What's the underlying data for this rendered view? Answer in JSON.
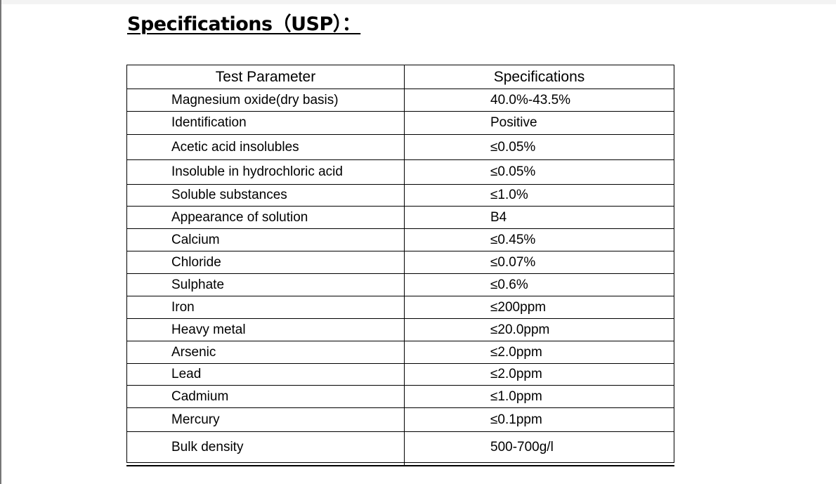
{
  "title": "Specifications（USP）：",
  "table": {
    "headers": [
      "Test Parameter",
      "Specifications"
    ],
    "rows": [
      [
        "Magnesium oxide(dry basis)",
        "40.0%-43.5%"
      ],
      [
        "Identification",
        "Positive"
      ],
      [
        "Acetic acid insolubles",
        "≤0.05%"
      ],
      [
        "Insoluble in hydrochloric acid",
        "≤0.05%"
      ],
      [
        "Soluble substances",
        "≤1.0%"
      ],
      [
        "Appearance of solution",
        "B4"
      ],
      [
        "Calcium",
        "≤0.45%"
      ],
      [
        "Chloride",
        "≤0.07%"
      ],
      [
        "Sulphate",
        "≤0.6%"
      ],
      [
        "Iron",
        "≤200ppm"
      ],
      [
        "Heavy metal",
        "≤20.0ppm"
      ],
      [
        "Arsenic",
        "≤2.0ppm"
      ],
      [
        "Lead",
        "≤2.0ppm"
      ],
      [
        "Cadmium",
        "≤1.0ppm"
      ],
      [
        "Mercury",
        "≤0.1ppm"
      ],
      [
        "Bulk density",
        "500-700g/l"
      ]
    ]
  }
}
